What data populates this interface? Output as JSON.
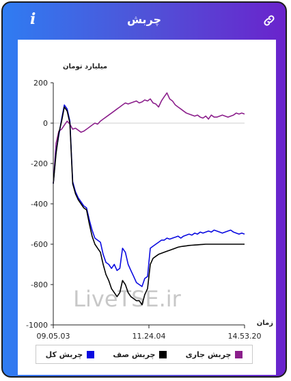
{
  "header": {
    "title": "چربش",
    "info_icon": "info-icon",
    "link_icon": "link-icon"
  },
  "chart_data": {
    "type": "line",
    "ylabel": "میلیارد تومان",
    "xlabel": "زمان",
    "ylim": [
      -1000,
      200
    ],
    "yticks": [
      200,
      0,
      -200,
      -400,
      -600,
      -800,
      -1000
    ],
    "xtick_labels": [
      "09.05.03",
      "11.24.04",
      "14.53.20"
    ],
    "watermark": "LiveTSE.ir",
    "series": [
      {
        "name": "چربش جاری",
        "color": "#8b1e8b",
        "values": [
          -300,
          -100,
          -40,
          -30,
          -10,
          10,
          -5,
          -30,
          -25,
          -35,
          -45,
          -40,
          -30,
          -20,
          -10,
          0,
          -5,
          10,
          20,
          30,
          40,
          50,
          60,
          70,
          80,
          90,
          100,
          95,
          100,
          105,
          110,
          100,
          105,
          115,
          110,
          120,
          100,
          95,
          80,
          110,
          130,
          150,
          120,
          110,
          90,
          80,
          70,
          60,
          50,
          45,
          40,
          35,
          40,
          30,
          25,
          35,
          20,
          40,
          30,
          30,
          35,
          40,
          35,
          30,
          35,
          40,
          50,
          45,
          50,
          45
        ]
      },
      {
        "name": "چربش صف",
        "color": "#000000",
        "values": [
          -300,
          -150,
          -50,
          10,
          80,
          60,
          0,
          -300,
          -350,
          -380,
          -400,
          -420,
          -430,
          -500,
          -560,
          -600,
          -620,
          -640,
          -700,
          -750,
          -780,
          -820,
          -840,
          -860,
          -840,
          -780,
          -800,
          -840,
          -860,
          -870,
          -880,
          -880,
          -900,
          -850,
          -820,
          -700,
          -670,
          -660,
          -650,
          -645,
          -640,
          -635,
          -630,
          -625,
          -620,
          -615,
          -612,
          -610,
          -608,
          -606,
          -605,
          -604,
          -603,
          -602,
          -601,
          -600,
          -600,
          -600,
          -600,
          -600,
          -600,
          -600,
          -600,
          -600,
          -600,
          -600,
          -600,
          -600,
          -600,
          -600
        ]
      },
      {
        "name": "چربش کل",
        "color": "#0a0ae0",
        "values": [
          -300,
          -140,
          -60,
          20,
          90,
          70,
          10,
          -290,
          -340,
          -370,
          -390,
          -410,
          -420,
          -480,
          -530,
          -570,
          -580,
          -590,
          -650,
          -690,
          -700,
          -720,
          -700,
          -730,
          -720,
          -620,
          -640,
          -700,
          -730,
          -760,
          -790,
          -800,
          -810,
          -770,
          -760,
          -620,
          -610,
          -600,
          -590,
          -580,
          -580,
          -570,
          -575,
          -570,
          -565,
          -560,
          -570,
          -560,
          -555,
          -550,
          -555,
          -545,
          -550,
          -540,
          -545,
          -540,
          -535,
          -540,
          -530,
          -535,
          -540,
          -545,
          -540,
          -535,
          -530,
          -540,
          -545,
          -550,
          -545,
          -550
        ]
      }
    ]
  }
}
